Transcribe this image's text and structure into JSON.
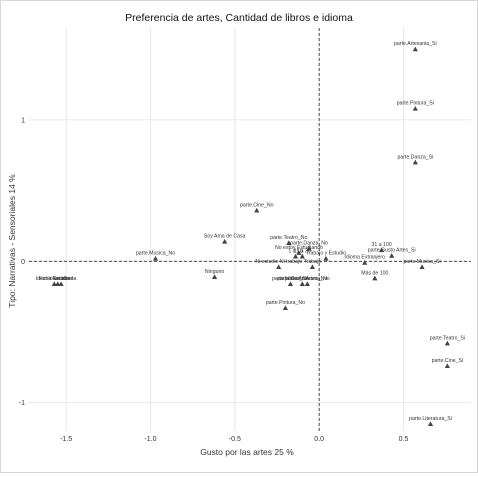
{
  "chart_data": {
    "type": "scatter",
    "title": "Preferencia de artes, Cantidad de libros e idioma",
    "xlabel": "Gusto por las artes 25 %",
    "ylabel": "Tipo: Narrativas - Sensoriales 14 %",
    "xlim": [
      -1.72,
      0.9
    ],
    "ylim": [
      -1.2,
      1.65
    ],
    "x_ticks": [
      -1.5,
      -1.0,
      -0.5,
      0.0,
      0.5
    ],
    "x_tick_labels": [
      "-1.5",
      "-1.0",
      "-0.5",
      "0.0",
      "0.5"
    ],
    "y_ticks": [
      -1,
      0,
      1
    ],
    "y_tick_labels": [
      "-1",
      "0",
      "1"
    ],
    "grid": true,
    "reference_lines": {
      "x": 0,
      "y": 0,
      "style": "dashed"
    },
    "marker": "triangle",
    "points": [
      {
        "label": "parte.Artesania_Si",
        "x": 0.57,
        "y": 1.5
      },
      {
        "label": "parte.Pintura_Si",
        "x": 0.57,
        "y": 1.08
      },
      {
        "label": "parte.Danza_Si",
        "x": 0.57,
        "y": 0.7
      },
      {
        "label": "parte.Cine_No",
        "x": -0.37,
        "y": 0.36
      },
      {
        "label": "Soy Ama de Casa",
        "x": -0.56,
        "y": 0.14
      },
      {
        "label": "parte.Teatro_No",
        "x": -0.18,
        "y": 0.13
      },
      {
        "label": "parte.Danza_No",
        "x": -0.06,
        "y": 0.09
      },
      {
        "label": "No estoy Estudiando",
        "x": -0.12,
        "y": 0.06
      },
      {
        "label": "1 a 10",
        "x": -0.14,
        "y": 0.035
      },
      {
        "label": "11 a 30",
        "x": -0.1,
        "y": 0.035
      },
      {
        "label": "Ni estudio Ni trabajo",
        "x": -0.24,
        "y": -0.04
      },
      {
        "label": "Trabajo",
        "x": -0.04,
        "y": -0.04
      },
      {
        "label": "Trabajo y Estudio",
        "x": 0.04,
        "y": 0.02
      },
      {
        "label": "Idioma Extranjero",
        "x": 0.27,
        "y": -0.01
      },
      {
        "label": "31 a 100",
        "x": 0.37,
        "y": 0.08
      },
      {
        "label": "parte.Gusto Artes_Si",
        "x": 0.43,
        "y": 0.04
      },
      {
        "label": "parte.Musica_Si",
        "x": 0.61,
        "y": -0.04
      },
      {
        "label": "Más de 100",
        "x": 0.33,
        "y": -0.12
      },
      {
        "label": "parte.Musica_No",
        "x": -0.97,
        "y": 0.02
      },
      {
        "label": "Ninguno",
        "x": -0.62,
        "y": -0.11
      },
      {
        "label": "parte.Gusto Artes_No",
        "x": -0.1,
        "y": -0.16
      },
      {
        "label": "parte.Libros_No",
        "x": -0.17,
        "y": -0.16
      },
      {
        "label": "parte.Artesania_No",
        "x": -0.07,
        "y": -0.16
      },
      {
        "label": "parte.Pintura_No",
        "x": -0.2,
        "y": -0.33
      },
      {
        "label": "Idioma Nacional",
        "x": -1.57,
        "y": -0.16
      },
      {
        "label": "Hablo un idioma",
        "x": -1.55,
        "y": -0.16
      },
      {
        "label": "Estudio",
        "x": -1.53,
        "y": -0.16
      },
      {
        "label": "parte.Teatro_Si",
        "x": 0.76,
        "y": -0.58
      },
      {
        "label": "parte.Cine_Si",
        "x": 0.76,
        "y": -0.74
      },
      {
        "label": "parte.Literatura_Si",
        "x": 0.66,
        "y": -1.15
      }
    ]
  }
}
